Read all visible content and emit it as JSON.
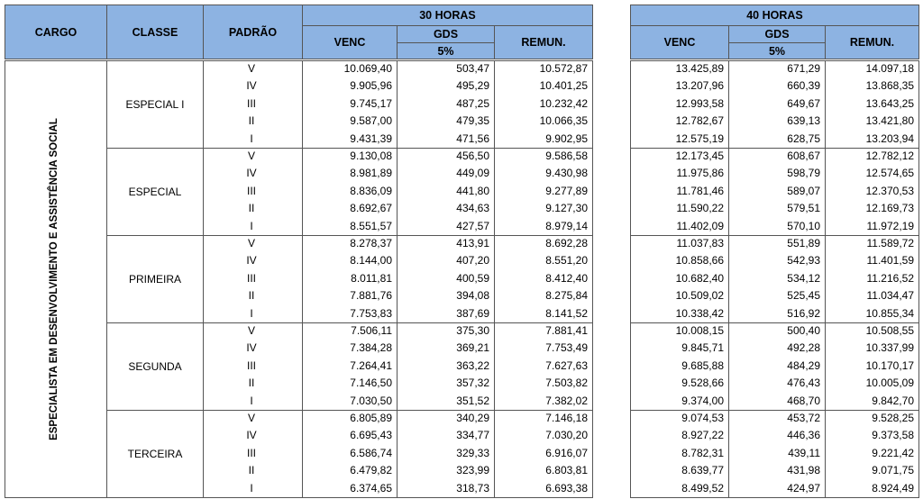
{
  "header": {
    "cargo": "CARGO",
    "classe": "CLASSE",
    "padrao": "PADRÃO",
    "groups": [
      {
        "title": "30 HORAS",
        "venc": "VENC",
        "gds": "GDS",
        "gds_pct": "5%",
        "remun": "REMUN."
      },
      {
        "title": "40 HORAS",
        "venc": "VENC",
        "gds": "GDS",
        "gds_pct": "5%",
        "remun": "REMUN."
      }
    ]
  },
  "cargo": "ESPECIALISTA EM DESENVOLVIMENTO E ASSISTÊNCIA SOCIAL",
  "classes": [
    {
      "name": "ESPECIAL I",
      "rows": [
        [
          "V",
          "10.069,40",
          "503,47",
          "10.572,87",
          "13.425,89",
          "671,29",
          "14.097,18"
        ],
        [
          "IV",
          "9.905,96",
          "495,29",
          "10.401,25",
          "13.207,96",
          "660,39",
          "13.868,35"
        ],
        [
          "III",
          "9.745,17",
          "487,25",
          "10.232,42",
          "12.993,58",
          "649,67",
          "13.643,25"
        ],
        [
          "II",
          "9.587,00",
          "479,35",
          "10.066,35",
          "12.782,67",
          "639,13",
          "13.421,80"
        ],
        [
          "I",
          "9.431,39",
          "471,56",
          "9.902,95",
          "12.575,19",
          "628,75",
          "13.203,94"
        ]
      ]
    },
    {
      "name": "ESPECIAL",
      "rows": [
        [
          "V",
          "9.130,08",
          "456,50",
          "9.586,58",
          "12.173,45",
          "608,67",
          "12.782,12"
        ],
        [
          "IV",
          "8.981,89",
          "449,09",
          "9.430,98",
          "11.975,86",
          "598,79",
          "12.574,65"
        ],
        [
          "III",
          "8.836,09",
          "441,80",
          "9.277,89",
          "11.781,46",
          "589,07",
          "12.370,53"
        ],
        [
          "II",
          "8.692,67",
          "434,63",
          "9.127,30",
          "11.590,22",
          "579,51",
          "12.169,73"
        ],
        [
          "I",
          "8.551,57",
          "427,57",
          "8.979,14",
          "11.402,09",
          "570,10",
          "11.972,19"
        ]
      ]
    },
    {
      "name": "PRIMEIRA",
      "rows": [
        [
          "V",
          "8.278,37",
          "413,91",
          "8.692,28",
          "11.037,83",
          "551,89",
          "11.589,72"
        ],
        [
          "IV",
          "8.144,00",
          "407,20",
          "8.551,20",
          "10.858,66",
          "542,93",
          "11.401,59"
        ],
        [
          "III",
          "8.011,81",
          "400,59",
          "8.412,40",
          "10.682,40",
          "534,12",
          "11.216,52"
        ],
        [
          "II",
          "7.881,76",
          "394,08",
          "8.275,84",
          "10.509,02",
          "525,45",
          "11.034,47"
        ],
        [
          "I",
          "7.753,83",
          "387,69",
          "8.141,52",
          "10.338,42",
          "516,92",
          "10.855,34"
        ]
      ]
    },
    {
      "name": "SEGUNDA",
      "rows": [
        [
          "V",
          "7.506,11",
          "375,30",
          "7.881,41",
          "10.008,15",
          "500,40",
          "10.508,55"
        ],
        [
          "IV",
          "7.384,28",
          "369,21",
          "7.753,49",
          "9.845,71",
          "492,28",
          "10.337,99"
        ],
        [
          "III",
          "7.264,41",
          "363,22",
          "7.627,63",
          "9.685,88",
          "484,29",
          "10.170,17"
        ],
        [
          "II",
          "7.146,50",
          "357,32",
          "7.503,82",
          "9.528,66",
          "476,43",
          "10.005,09"
        ],
        [
          "I",
          "7.030,50",
          "351,52",
          "7.382,02",
          "9.374,00",
          "468,70",
          "9.842,70"
        ]
      ]
    },
    {
      "name": "TERCEIRA",
      "rows": [
        [
          "V",
          "6.805,89",
          "340,29",
          "7.146,18",
          "9.074,53",
          "453,72",
          "9.528,25"
        ],
        [
          "IV",
          "6.695,43",
          "334,77",
          "7.030,20",
          "8.927,22",
          "446,36",
          "9.373,58"
        ],
        [
          "III",
          "6.586,74",
          "329,33",
          "6.916,07",
          "8.782,31",
          "439,11",
          "9.221,42"
        ],
        [
          "II",
          "6.479,82",
          "323,99",
          "6.803,81",
          "8.639,77",
          "431,98",
          "9.071,75"
        ],
        [
          "I",
          "6.374,65",
          "318,73",
          "6.693,38",
          "8.499,52",
          "424,97",
          "8.924,49"
        ]
      ]
    }
  ]
}
